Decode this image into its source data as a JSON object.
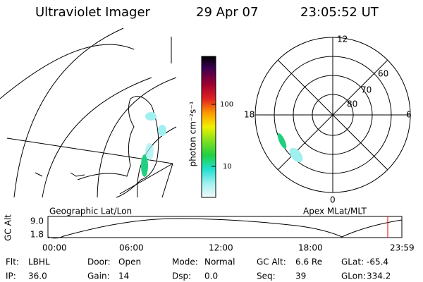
{
  "header": {
    "title": "Ultraviolet Imager",
    "date": "29 Apr 07",
    "time": "23:05:52 UT"
  },
  "colorbar": {
    "label": "photon cm⁻²s⁻¹",
    "ticks": [
      "100",
      "10"
    ]
  },
  "polar": {
    "hour_labels": [
      "12",
      "18",
      "6",
      "0"
    ],
    "lat_labels": [
      "60",
      "70",
      "80"
    ],
    "caption": "Apex MLat/MLT"
  },
  "map": {
    "caption": "Geographic Lat/Lon"
  },
  "orbit": {
    "axis_label": "GC Alt",
    "yticks": [
      "9.0",
      "1.8"
    ],
    "xticks": [
      "00:00",
      "06:00",
      "12:00",
      "18:00",
      "23:59"
    ]
  },
  "info": [
    [
      [
        "Flt:",
        "LBHL"
      ],
      [
        "Door:",
        "Open"
      ],
      [
        "Mode:",
        "Normal"
      ],
      [
        "GC Alt:",
        "6.6 Re"
      ],
      [
        "GLat:",
        "-65.4"
      ]
    ],
    [
      [
        "IP:",
        "36.0"
      ],
      [
        "Gain:",
        "14"
      ],
      [
        "Dsp:",
        "0.0"
      ],
      [
        "Seq:",
        "39"
      ],
      [
        "GLon:",
        "334.2"
      ]
    ]
  ]
}
